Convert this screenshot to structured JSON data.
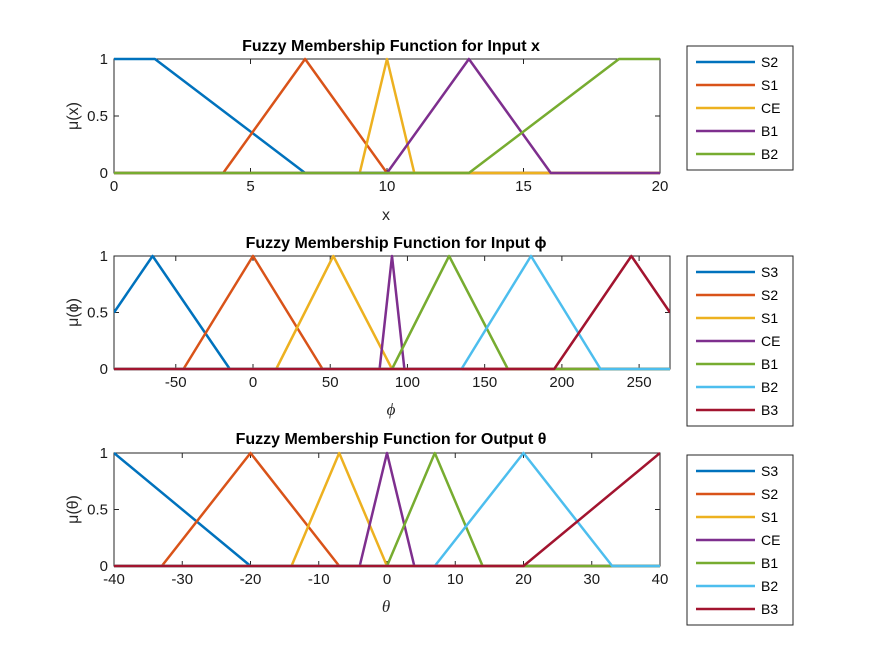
{
  "colors": {
    "blue": "#0072BD",
    "orange": "#D95319",
    "yellow": "#EDB120",
    "purple": "#7E2F8E",
    "green": "#77AC30",
    "cyan": "#4DBEEE",
    "red": "#A2142F"
  },
  "chart_data": [
    {
      "type": "line",
      "title": "Fuzzy Membership Function for Input x",
      "xlabel": "x",
      "ylabel": "μ(x)",
      "xlim": [
        0,
        20
      ],
      "ylim": [
        0,
        1
      ],
      "xticks": [
        0,
        5,
        10,
        15,
        20
      ],
      "xtick_labels": [
        "0",
        "5",
        "10",
        "15",
        "20"
      ],
      "yticks": [
        0,
        0.5,
        1
      ],
      "ytick_labels": [
        "0",
        "0.5",
        "1"
      ],
      "legend": "outside-right",
      "series": [
        {
          "name": "S2",
          "color": "#0072BD",
          "x": [
            0,
            1.5,
            7,
            20
          ],
          "y": [
            1,
            1,
            0,
            0
          ]
        },
        {
          "name": "S1",
          "color": "#D95319",
          "x": [
            0,
            4,
            7,
            10,
            20
          ],
          "y": [
            0,
            0,
            1,
            0,
            0
          ]
        },
        {
          "name": "CE",
          "color": "#EDB120",
          "x": [
            0,
            9,
            10,
            11,
            20
          ],
          "y": [
            0,
            0,
            1,
            0,
            0
          ]
        },
        {
          "name": "B1",
          "color": "#7E2F8E",
          "x": [
            0,
            10,
            13,
            16,
            20
          ],
          "y": [
            0,
            0,
            1,
            0,
            0
          ]
        },
        {
          "name": "B2",
          "color": "#77AC30",
          "x": [
            0,
            13,
            18.5,
            20
          ],
          "y": [
            0,
            0,
            1,
            1
          ]
        }
      ]
    },
    {
      "type": "line",
      "title": "Fuzzy Membership Function for Input ϕ",
      "xlabel": "ϕ",
      "ylabel": "μ(ϕ)",
      "xlim": [
        -90,
        270
      ],
      "ylim": [
        0,
        1
      ],
      "xticks": [
        -50,
        0,
        50,
        100,
        150,
        200,
        250
      ],
      "xtick_labels": [
        "-50",
        "0",
        "50",
        "100",
        "150",
        "200",
        "250"
      ],
      "yticks": [
        0,
        0.5,
        1
      ],
      "ytick_labels": [
        "0",
        "0.5",
        "1"
      ],
      "legend": "outside-right",
      "series": [
        {
          "name": "S3",
          "color": "#0072BD",
          "x": [
            -90,
            -65,
            -15,
            270
          ],
          "y": [
            0.5,
            1,
            0,
            0
          ]
        },
        {
          "name": "S2",
          "color": "#D95319",
          "x": [
            -90,
            -45,
            0,
            45,
            270
          ],
          "y": [
            0,
            0,
            1,
            0,
            0
          ]
        },
        {
          "name": "S1",
          "color": "#EDB120",
          "x": [
            -90,
            15,
            52,
            90,
            270
          ],
          "y": [
            0,
            0,
            1,
            0,
            0
          ]
        },
        {
          "name": "CE",
          "color": "#7E2F8E",
          "x": [
            -90,
            82,
            90,
            98,
            270
          ],
          "y": [
            0,
            0,
            1,
            0,
            0
          ]
        },
        {
          "name": "B1",
          "color": "#77AC30",
          "x": [
            -90,
            90,
            127,
            165,
            270
          ],
          "y": [
            0,
            0,
            1,
            0,
            0
          ]
        },
        {
          "name": "B2",
          "color": "#4DBEEE",
          "x": [
            -90,
            135,
            180,
            225,
            270
          ],
          "y": [
            0,
            0,
            1,
            0,
            0
          ]
        },
        {
          "name": "B3",
          "color": "#A2142F",
          "x": [
            -90,
            195,
            245,
            270
          ],
          "y": [
            0,
            0,
            1,
            0.5
          ]
        }
      ]
    },
    {
      "type": "line",
      "title": "Fuzzy Membership Function for Output θ",
      "xlabel": "θ",
      "ylabel": "μ(θ)",
      "xlim": [
        -40,
        40
      ],
      "ylim": [
        0,
        1
      ],
      "xticks": [
        -40,
        -30,
        -20,
        -10,
        0,
        10,
        20,
        30,
        40
      ],
      "xtick_labels": [
        "-40",
        "-30",
        "-20",
        "-10",
        "0",
        "10",
        "20",
        "30",
        "40"
      ],
      "yticks": [
        0,
        0.5,
        1
      ],
      "ytick_labels": [
        "0",
        "0.5",
        "1"
      ],
      "legend": "outside-right",
      "series": [
        {
          "name": "S3",
          "color": "#0072BD",
          "x": [
            -40,
            -20,
            40
          ],
          "y": [
            1,
            0,
            0
          ]
        },
        {
          "name": "S2",
          "color": "#D95319",
          "x": [
            -40,
            -33,
            -20,
            -7,
            40
          ],
          "y": [
            0,
            0,
            1,
            0,
            0
          ]
        },
        {
          "name": "S1",
          "color": "#EDB120",
          "x": [
            -40,
            -14,
            -7,
            0,
            40
          ],
          "y": [
            0,
            0,
            1,
            0,
            0
          ]
        },
        {
          "name": "CE",
          "color": "#7E2F8E",
          "x": [
            -40,
            -4,
            0,
            4,
            40
          ],
          "y": [
            0,
            0,
            1,
            0,
            0
          ]
        },
        {
          "name": "B1",
          "color": "#77AC30",
          "x": [
            -40,
            0,
            7,
            14,
            40
          ],
          "y": [
            0,
            0,
            1,
            0,
            0
          ]
        },
        {
          "name": "B2",
          "color": "#4DBEEE",
          "x": [
            -40,
            7,
            20,
            33,
            40
          ],
          "y": [
            0,
            0,
            1,
            0,
            0
          ]
        },
        {
          "name": "B3",
          "color": "#A2142F",
          "x": [
            -40,
            20,
            40
          ],
          "y": [
            0,
            0,
            1
          ]
        }
      ]
    }
  ]
}
